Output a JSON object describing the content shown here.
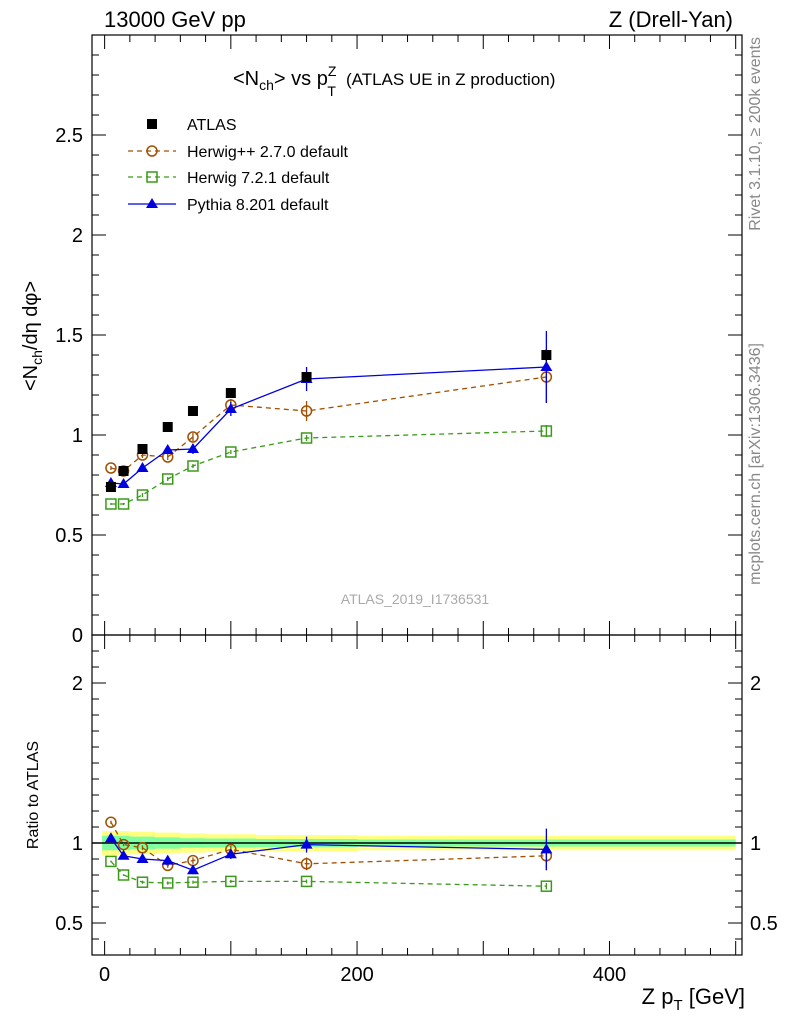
{
  "header": {
    "left": "13000 GeV pp",
    "right": "Z (Drell-Yan)"
  },
  "title": {
    "lt": "<N",
    "ch": "ch",
    "mid": "> vs p",
    "sup": "Z",
    "sub": "T",
    "rest": "(ATLAS UE in Z production)"
  },
  "side_text": {
    "rivet": "Rivet 3.1.10, ≥ 200k events",
    "mcplots": "mcplots.cern.ch [arXiv:1306.3436]"
  },
  "watermark": "ATLAS_2019_I1736531",
  "colors": {
    "atlas": "#000000",
    "herwigpp": "#a05000",
    "herwig7": "#3a9a1a",
    "pythia": "#0000e0",
    "band_outer": "#ffff80",
    "band_inner": "#80ffa0"
  },
  "chart_data": [
    {
      "type": "scatter",
      "title": "<Nch> vs pT^Z (ATLAS UE in Z production)",
      "ylabel": "<N_ch/dη dφ>",
      "xlim": [
        -10,
        505
      ],
      "ylim": [
        0,
        3.0
      ],
      "yticks": [
        0,
        0.5,
        1,
        1.5,
        2,
        2.5
      ],
      "ytick_labels": [
        "0",
        "0.5",
        "1",
        "1.5",
        "2",
        "2.5"
      ],
      "legend_position": "top-left",
      "series": [
        {
          "name": "ATLAS",
          "marker": "square-filled",
          "x": [
            5,
            15,
            30,
            50,
            70,
            100,
            160,
            350
          ],
          "y": [
            0.74,
            0.82,
            0.93,
            1.04,
            1.12,
            1.21,
            1.29,
            1.4
          ],
          "yerr": [
            0.01,
            0.01,
            0.01,
            0.01,
            0.01,
            0.01,
            0.02,
            0.03
          ]
        },
        {
          "name": "Herwig++ 2.7.0 default",
          "marker": "circle-open",
          "dashed": true,
          "x": [
            5,
            15,
            30,
            50,
            70,
            100,
            160,
            350
          ],
          "y": [
            0.835,
            0.82,
            0.9,
            0.89,
            0.99,
            1.15,
            1.12,
            1.29
          ],
          "yerr": [
            0.01,
            0.01,
            0.015,
            0.015,
            0.02,
            0.03,
            0.05,
            0.13
          ]
        },
        {
          "name": "Herwig 7.2.1 default",
          "marker": "square-open",
          "dashed": true,
          "x": [
            5,
            15,
            30,
            50,
            70,
            100,
            160,
            350
          ],
          "y": [
            0.655,
            0.655,
            0.7,
            0.78,
            0.845,
            0.915,
            0.985,
            1.02
          ],
          "yerr": [
            0.005,
            0.005,
            0.01,
            0.01,
            0.01,
            0.01,
            0.015,
            0.03
          ]
        },
        {
          "name": "Pythia 8.201 default",
          "marker": "triangle-filled",
          "x": [
            5,
            15,
            30,
            50,
            70,
            100,
            160,
            350
          ],
          "y": [
            0.76,
            0.755,
            0.835,
            0.925,
            0.93,
            1.13,
            1.28,
            1.34
          ],
          "yerr": [
            0.01,
            0.01,
            0.015,
            0.02,
            0.025,
            0.035,
            0.06,
            0.18
          ]
        }
      ]
    },
    {
      "type": "scatter",
      "ylabel": "Ratio to ATLAS",
      "xlabel": "Z p_T [GeV]",
      "xlim": [
        -10,
        505
      ],
      "ylim": [
        0.3,
        2.3
      ],
      "xticks": [
        0,
        200,
        400
      ],
      "xtick_labels": [
        "0",
        "200",
        "400"
      ],
      "yticks": [
        0.5,
        1,
        2
      ],
      "ytick_labels": [
        "0.5",
        "1",
        "2"
      ],
      "reference_line": 1,
      "bands": {
        "x": [
          -2,
          10,
          20,
          40,
          60,
          80,
          120,
          200,
          500
        ],
        "outer_halfwidth": [
          0.075,
          0.075,
          0.07,
          0.065,
          0.06,
          0.055,
          0.05,
          0.045,
          0.045
        ],
        "inner_halfwidth": [
          0.045,
          0.045,
          0.04,
          0.035,
          0.03,
          0.028,
          0.025,
          0.022,
          0.022
        ]
      },
      "series": [
        {
          "name": "Herwig++ 2.7.0 default",
          "x": [
            5,
            15,
            30,
            50,
            70,
            100,
            160,
            350
          ],
          "y": [
            1.13,
            0.99,
            0.97,
            0.86,
            0.89,
            0.96,
            0.87,
            0.92
          ],
          "yerr": [
            0.01,
            0.01,
            0.015,
            0.015,
            0.02,
            0.025,
            0.04,
            0.09
          ]
        },
        {
          "name": "Herwig 7.2.1 default",
          "x": [
            5,
            15,
            30,
            50,
            70,
            100,
            160,
            350
          ],
          "y": [
            0.885,
            0.8,
            0.755,
            0.75,
            0.755,
            0.76,
            0.76,
            0.73
          ],
          "yerr": [
            0.005,
            0.005,
            0.01,
            0.01,
            0.01,
            0.01,
            0.012,
            0.02
          ]
        },
        {
          "name": "Pythia 8.201 default",
          "x": [
            5,
            15,
            30,
            50,
            70,
            100,
            160,
            350
          ],
          "y": [
            1.03,
            0.92,
            0.9,
            0.89,
            0.83,
            0.93,
            0.99,
            0.96
          ],
          "yerr": [
            0.01,
            0.01,
            0.015,
            0.02,
            0.025,
            0.03,
            0.05,
            0.13
          ]
        }
      ]
    }
  ]
}
